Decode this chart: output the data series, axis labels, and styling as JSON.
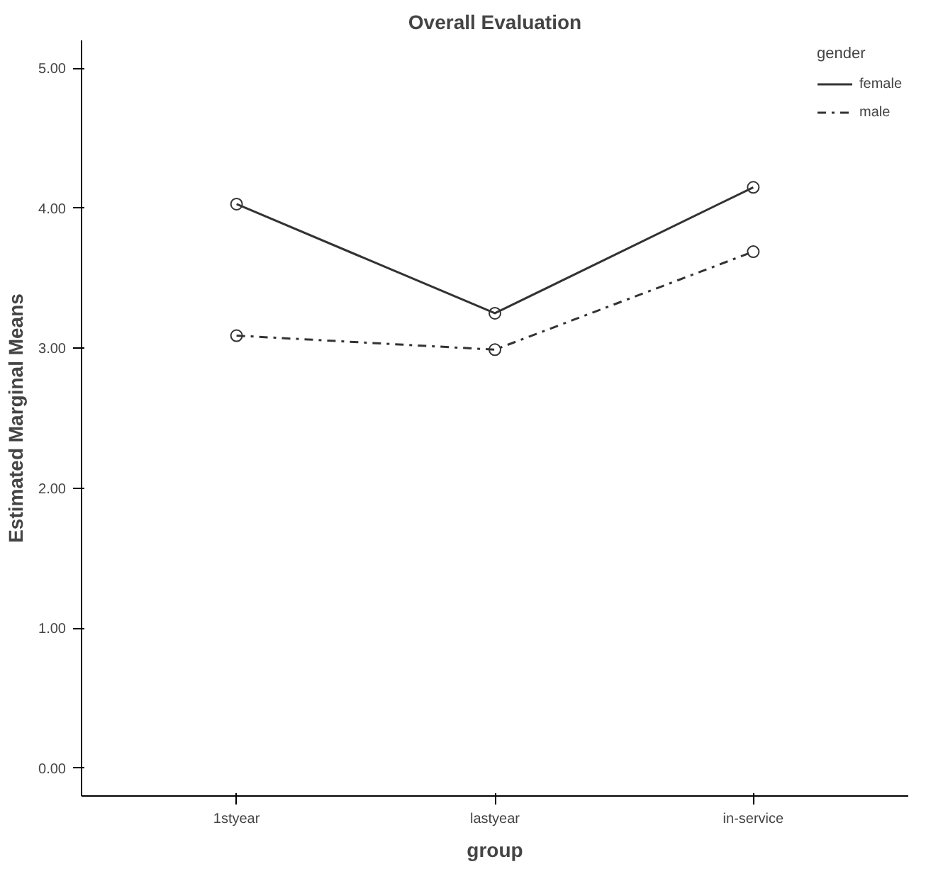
{
  "chart_data": {
    "type": "line",
    "title": "Overall Evaluation",
    "xlabel": "group",
    "ylabel": "Estimated Marginal Means",
    "legend_title": "gender",
    "categories": [
      "1styear",
      "lastyear",
      "in-service"
    ],
    "series": [
      {
        "name": "female",
        "color": "#333333",
        "values": [
          4.03,
          3.25,
          4.15
        ],
        "line_style": "solid"
      },
      {
        "name": "male",
        "color": "#333333",
        "values": [
          3.09,
          2.99,
          3.69
        ],
        "line_style": "dashed"
      }
    ],
    "ylim": [
      -0.2,
      5.2
    ],
    "yticks": [
      {
        "value": 0,
        "label": "0.00"
      },
      {
        "value": 1,
        "label": "1.00"
      },
      {
        "value": 2,
        "label": "2.00"
      },
      {
        "value": 3,
        "label": "3.00"
      },
      {
        "value": 4,
        "label": "4.00"
      },
      {
        "value": 5,
        "label": "5.00"
      }
    ],
    "marker": "circle",
    "grid": false,
    "legend": "top right"
  }
}
